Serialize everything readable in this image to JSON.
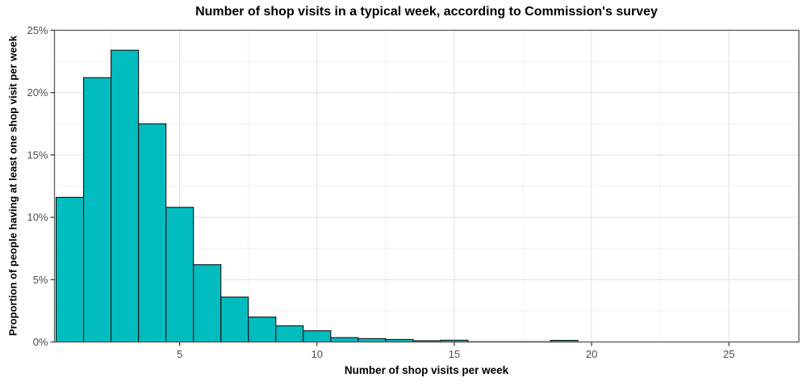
{
  "chart_data": {
    "type": "bar",
    "subtype": "histogram",
    "title": "Number of shop visits in a typical week, according to Commission's survey",
    "xlabel": "Number of shop visits per week",
    "ylabel": "Proportion of people having at least one shop visit per week",
    "x": [
      1,
      2,
      3,
      4,
      5,
      6,
      7,
      8,
      9,
      10,
      11,
      12,
      13,
      14,
      15,
      16,
      17,
      18,
      19
    ],
    "values": [
      11.6,
      21.2,
      23.4,
      17.5,
      10.8,
      6.2,
      3.6,
      2.0,
      1.3,
      0.9,
      0.35,
      0.27,
      0.2,
      0.1,
      0.14,
      0.02,
      0.02,
      0.02,
      0.13
    ],
    "value_unit": "%",
    "bar_width": 1,
    "xlim": [
      0.44,
      27.55
    ],
    "ylim": [
      0,
      25
    ],
    "x_tick_values": [
      5,
      10,
      15,
      20,
      25
    ],
    "x_tick_labels": [
      "5",
      "10",
      "15",
      "20",
      "25"
    ],
    "y_tick_values": [
      0,
      5,
      10,
      15,
      20,
      25
    ],
    "y_tick_labels": [
      "0%",
      "5%",
      "10%",
      "15%",
      "20%",
      "25%"
    ],
    "legend": "none",
    "grid": "horizontal and vertical, major every 5 with minor every 2.5, light gray on white panel",
    "colors": {
      "bar_fill": "#00bcbe",
      "bar_stroke": "#111111",
      "grid_major": "#e3e3e3",
      "grid_minor": "#f1f1f1",
      "panel_border": "#595959",
      "tick_mark": "#333333",
      "tick_text": "#4d4d4d",
      "title_text": "#000000",
      "background": "#ffffff"
    }
  }
}
